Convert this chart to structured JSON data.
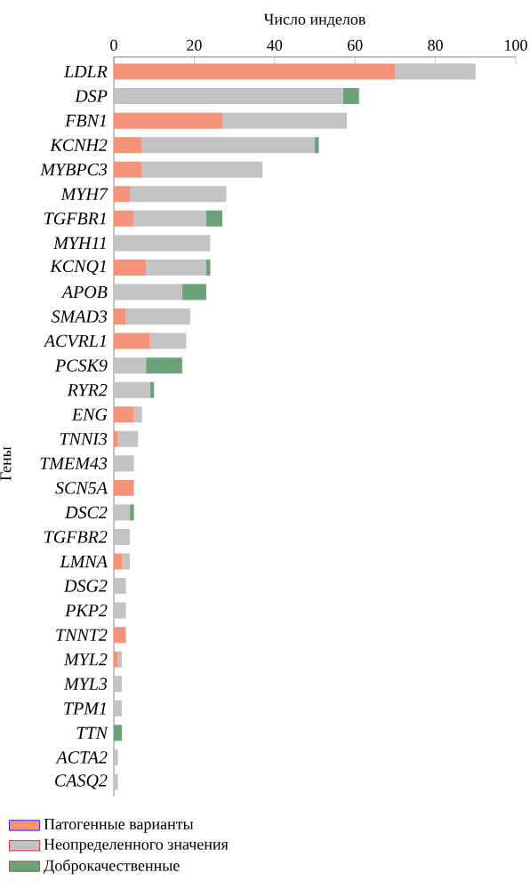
{
  "chart_data": {
    "type": "bar",
    "orientation": "horizontal",
    "stacked": true,
    "xlabel": "Число инделов",
    "ylabel": "Гены",
    "categories": [
      "LDLR",
      "DSP",
      "FBN1",
      "KCNH2",
      "MYBPC3",
      "MYH7",
      "TGFBR1",
      "MYH11",
      "KCNQ1",
      "APOB",
      "SMAD3",
      "ACVRL1",
      "PCSK9",
      "RYR2",
      "ENG",
      "TNNI3",
      "TMEM43",
      "SCN5A",
      "DSC2",
      "TGFBR2",
      "LMNA",
      "DSG2",
      "PKP2",
      "TNNT2",
      "MYL2",
      "MYL3",
      "TPM1",
      "TTN",
      "ACTA2",
      "CASQ2"
    ],
    "series": [
      {
        "name": "Патогенные варианты",
        "color": "#f4937a",
        "values": [
          70,
          null,
          27,
          7,
          7,
          4,
          5,
          null,
          8,
          null,
          3,
          9,
          null,
          null,
          5,
          1,
          null,
          5,
          null,
          null,
          2,
          null,
          null,
          3,
          1,
          null,
          null,
          null,
          null,
          null
        ]
      },
      {
        "name": "Неопределенного значения",
        "color": "#c3c3c3",
        "values": [
          20,
          57,
          31,
          43,
          30,
          24,
          18,
          24,
          15,
          17,
          16,
          9,
          8,
          9,
          2,
          5,
          5,
          null,
          4,
          4,
          2,
          3,
          3,
          null,
          1,
          2,
          2,
          null,
          1,
          1
        ]
      },
      {
        "name": "Доброкачественные",
        "color": "#6ca27a",
        "values": [
          null,
          4,
          null,
          1,
          null,
          null,
          4,
          null,
          1,
          6,
          null,
          null,
          9,
          1,
          null,
          null,
          null,
          null,
          1,
          null,
          null,
          null,
          null,
          null,
          null,
          null,
          null,
          2,
          null,
          null
        ]
      }
    ],
    "xlim": [
      0,
      100
    ],
    "xticks": [
      0,
      20,
      40,
      60,
      80,
      100
    ],
    "legend": "bottom left"
  }
}
